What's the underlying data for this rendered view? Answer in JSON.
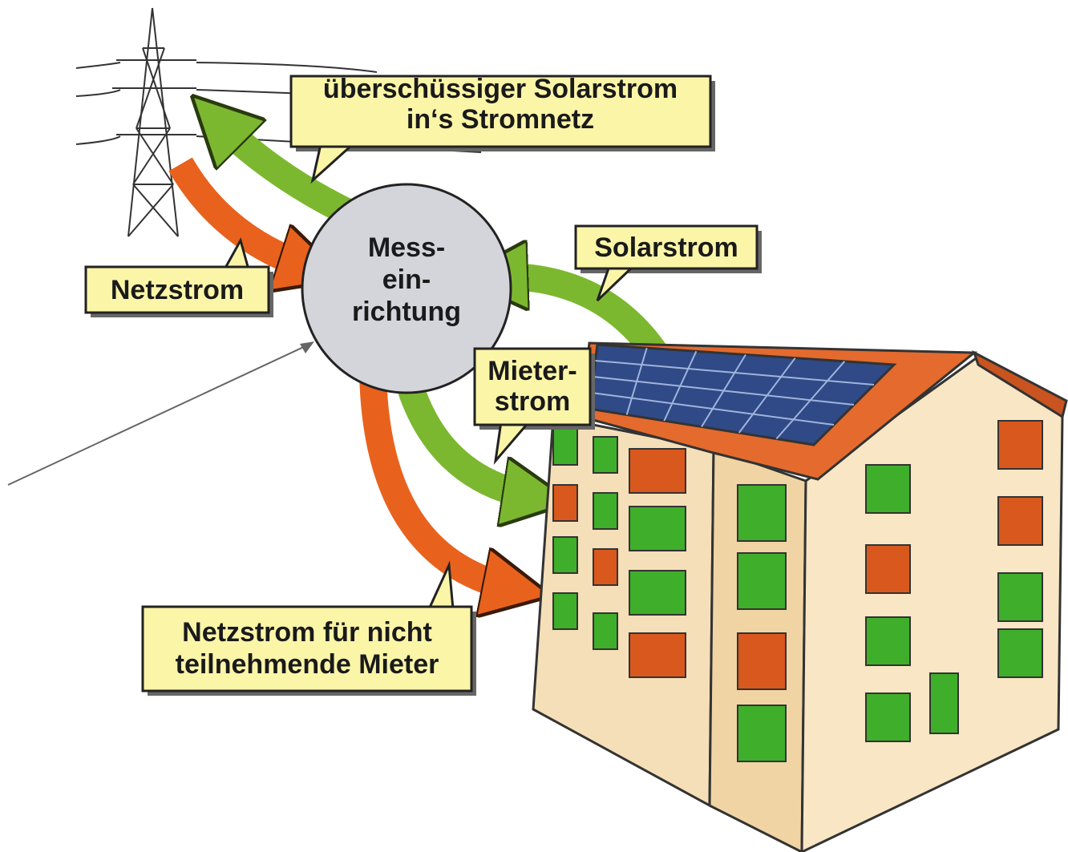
{
  "labels": {
    "surplus": [
      "überschüssiger Solarstrom",
      "in‘s Stromnetz"
    ],
    "grid": [
      "Netzstrom"
    ],
    "meter": [
      "Mess-",
      "ein-",
      "richtung"
    ],
    "solar": [
      "Solarstrom"
    ],
    "tenant": [
      "Mieter-",
      "strom"
    ],
    "non_participating": [
      "Netzstrom für nicht",
      "teilnehmende Mieter"
    ]
  }
}
